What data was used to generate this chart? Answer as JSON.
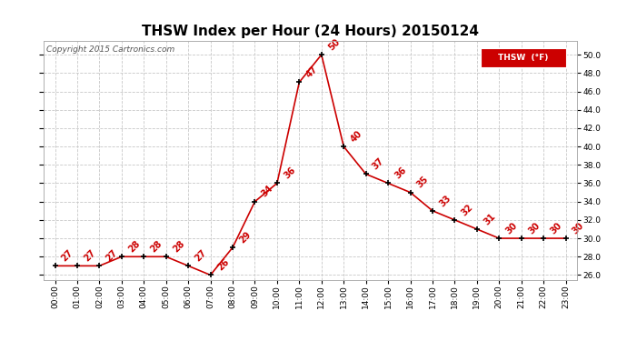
{
  "title": "THSW Index per Hour (24 Hours) 20150124",
  "copyright": "Copyright 2015 Cartronics.com",
  "legend_label": "THSW  (°F)",
  "hours": [
    0,
    1,
    2,
    3,
    4,
    5,
    6,
    7,
    8,
    9,
    10,
    11,
    12,
    13,
    14,
    15,
    16,
    17,
    18,
    19,
    20,
    21,
    22,
    23
  ],
  "values": [
    27,
    27,
    27,
    28,
    28,
    28,
    27,
    26,
    29,
    34,
    36,
    47,
    50,
    40,
    37,
    36,
    35,
    33,
    32,
    31,
    30,
    30,
    30,
    30
  ],
  "xlabels": [
    "00:00",
    "01:00",
    "02:00",
    "03:00",
    "04:00",
    "05:00",
    "06:00",
    "07:00",
    "08:00",
    "09:00",
    "10:00",
    "11:00",
    "12:00",
    "13:00",
    "14:00",
    "15:00",
    "16:00",
    "17:00",
    "18:00",
    "19:00",
    "20:00",
    "21:00",
    "22:00",
    "23:00"
  ],
  "ylim": [
    25.5,
    51.5
  ],
  "yticks": [
    26.0,
    28.0,
    30.0,
    32.0,
    34.0,
    36.0,
    38.0,
    40.0,
    42.0,
    44.0,
    46.0,
    48.0,
    50.0
  ],
  "line_color": "#cc0000",
  "marker_color": "#000000",
  "bg_color": "#ffffff",
  "grid_color": "#c8c8c8",
  "title_fontsize": 11,
  "label_fontsize": 6.5,
  "anno_fontsize": 7,
  "copyright_fontsize": 6.5,
  "legend_bg": "#cc0000",
  "legend_text_color": "#ffffff",
  "legend_fontsize": 6.5
}
